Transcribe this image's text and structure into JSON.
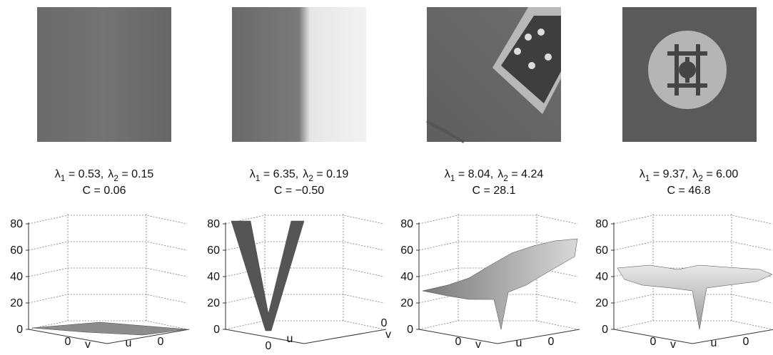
{
  "panels": [
    {
      "l1": {
        "symbol": "λ",
        "sub": "1",
        "text": " = 0.53,"
      },
      "l2": {
        "symbol": "λ",
        "sub": "2",
        "text": " = 0.15"
      },
      "c": "C = 0.06",
      "zticks": [
        "0",
        "20",
        "40",
        "60",
        "80"
      ],
      "axis_labels": [
        "0",
        "v",
        "u",
        "0"
      ]
    },
    {
      "l1": {
        "symbol": "λ",
        "sub": "1",
        "text": " = 6.35,"
      },
      "l2": {
        "symbol": "λ",
        "sub": "2",
        "text": " = 0.19"
      },
      "c": "C = −0.50",
      "zticks": [
        "0",
        "20",
        "40",
        "60",
        "80"
      ],
      "axis_labels": [
        "0",
        "u",
        "0",
        "v"
      ]
    },
    {
      "l1": {
        "symbol": "λ",
        "sub": "1",
        "text": " = 8.04,"
      },
      "l2": {
        "symbol": "λ",
        "sub": "2",
        "text": " = 4.24"
      },
      "c": "C = 28.1",
      "zticks": [
        "0",
        "20",
        "40",
        "60",
        "80"
      ],
      "axis_labels": [
        "0",
        "v",
        "u",
        "0"
      ]
    },
    {
      "l1": {
        "symbol": "λ",
        "sub": "1",
        "text": " = 9.37,"
      },
      "l2": {
        "symbol": "λ",
        "sub": "2",
        "text": " = 6.00"
      },
      "c": "C = 46.8",
      "zticks": [
        "0",
        "20",
        "40",
        "60",
        "80"
      ],
      "axis_labels": [
        "0",
        "v",
        "u",
        "0"
      ]
    }
  ]
}
